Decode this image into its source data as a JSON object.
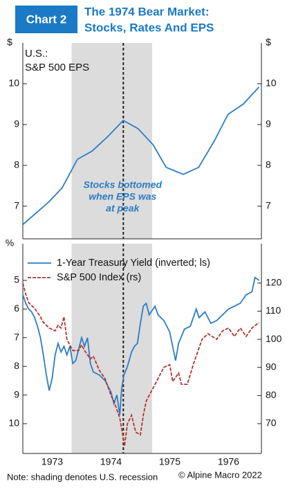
{
  "header": {
    "badge": "Chart 2",
    "title": [
      "The 1974 Bear Market:",
      "Stocks, Rates And EPS"
    ]
  },
  "note": "Note: shading denotes U.S. recession",
  "copyright": "© Alpine Macro 2022",
  "chart_data": [
    {
      "type": "line",
      "title": [
        "U.S.:",
        "S&P 500 EPS"
      ],
      "y_unit": "$",
      "y2_unit": "$",
      "xlim": [
        1973.0,
        1977.06
      ],
      "ylim": [
        6.2,
        11.0
      ],
      "yticks": [
        7,
        8,
        9,
        10
      ],
      "y2lim": [
        6.2,
        11.0
      ],
      "y2ticks": [
        7,
        8,
        9,
        10
      ],
      "recession": [
        1973.83,
        1975.2
      ],
      "stocks_bottom": 1974.71,
      "annotation": [
        "Stocks bottomed",
        "when EPS was",
        "at peak"
      ],
      "series": [
        {
          "color": "#2b7cc4",
          "x": [
            1973.0,
            1973.2,
            1973.44,
            1973.67,
            1973.93,
            1974.18,
            1974.44,
            1974.71,
            1974.96,
            1975.22,
            1975.44,
            1975.73,
            1975.99,
            1976.26,
            1976.49,
            1976.75,
            1977.02
          ],
          "values": [
            6.55,
            6.8,
            7.1,
            7.45,
            8.15,
            8.35,
            8.7,
            9.1,
            8.9,
            8.5,
            7.95,
            7.78,
            7.95,
            8.6,
            9.25,
            9.5,
            9.92
          ]
        }
      ]
    },
    {
      "type": "line",
      "y_unit": "%",
      "xlim": [
        1973.0,
        1977.06
      ],
      "ylim": [
        11.04,
        3.72
      ],
      "yticks": [
        5,
        6,
        7,
        8,
        9,
        10
      ],
      "y2lim": [
        59.4,
        134
      ],
      "y2ticks": [
        70,
        80,
        90,
        100,
        110,
        120
      ],
      "xticks": [
        {
          "value": 1973.5,
          "label": "1973"
        },
        {
          "value": 1974.5,
          "label": "1974"
        },
        {
          "value": 1975.5,
          "label": "1975"
        },
        {
          "value": 1976.5,
          "label": "1976"
        }
      ],
      "recession": [
        1973.83,
        1975.2
      ],
      "stocks_bottom": 1974.71,
      "series": [
        {
          "name": "1-Year Treasury Yield (inverted; ls)",
          "color": "#2b7cc4",
          "dash": false,
          "x": [
            1973.0,
            1973.05,
            1973.1,
            1973.15,
            1973.2,
            1973.25,
            1973.3,
            1973.35,
            1973.4,
            1973.45,
            1973.5,
            1973.55,
            1973.6,
            1973.65,
            1973.7,
            1973.75,
            1973.8,
            1973.85,
            1973.9,
            1974.0,
            1974.05,
            1974.1,
            1974.15,
            1974.2,
            1974.3,
            1974.4,
            1974.5,
            1974.55,
            1974.6,
            1974.65,
            1974.68,
            1974.72,
            1974.78,
            1974.85,
            1974.9,
            1974.95,
            1975.0,
            1975.05,
            1975.1,
            1975.15,
            1975.25,
            1975.3,
            1975.4,
            1975.5,
            1975.6,
            1975.65,
            1975.75,
            1975.85,
            1975.95,
            1976.0,
            1976.1,
            1976.2,
            1976.3,
            1976.4,
            1976.5,
            1976.6,
            1976.7,
            1976.8,
            1976.9,
            1976.95,
            1977.02
          ],
          "values": [
            5.5,
            5.8,
            6.0,
            6.1,
            6.3,
            6.6,
            7.0,
            7.6,
            8.3,
            8.85,
            8.4,
            7.6,
            7.2,
            7.5,
            7.3,
            7.6,
            7.3,
            7.9,
            7.8,
            7.0,
            7.3,
            7.0,
            7.9,
            8.2,
            8.3,
            8.5,
            8.9,
            9.3,
            9.0,
            9.7,
            8.8,
            8.3,
            8.0,
            7.5,
            7.3,
            7.2,
            6.5,
            5.9,
            5.8,
            6.2,
            5.9,
            6.2,
            6.4,
            6.8,
            7.8,
            7.2,
            6.7,
            6.6,
            6.0,
            6.3,
            6.1,
            6.5,
            6.4,
            6.2,
            6.0,
            5.9,
            5.8,
            5.5,
            5.4,
            4.9,
            5.0
          ]
        },
        {
          "name": "S&P 500 Index (rs)",
          "color": "#b8312f",
          "dash": true,
          "axis": "y2",
          "x": [
            1973.0,
            1973.05,
            1973.1,
            1973.2,
            1973.3,
            1973.35,
            1973.45,
            1973.55,
            1973.6,
            1973.65,
            1973.7,
            1973.75,
            1973.85,
            1973.95,
            1974.0,
            1974.05,
            1974.15,
            1974.2,
            1974.3,
            1974.4,
            1974.5,
            1974.55,
            1974.65,
            1974.7,
            1974.73,
            1974.78,
            1974.85,
            1974.92,
            1975.0,
            1975.05,
            1975.1,
            1975.2,
            1975.3,
            1975.4,
            1975.5,
            1975.55,
            1975.65,
            1975.7,
            1975.8,
            1975.9,
            1976.0,
            1976.05,
            1976.15,
            1976.3,
            1976.4,
            1976.5,
            1976.6,
            1976.7,
            1976.8,
            1976.9,
            1977.02
          ],
          "values": [
            120,
            116,
            113,
            111,
            108,
            106,
            104,
            103,
            105,
            104,
            108,
            100,
            96,
            96,
            98,
            96,
            93,
            94,
            89,
            86,
            80,
            78,
            72,
            66,
            62,
            70,
            73,
            67,
            66,
            73,
            78,
            82,
            86,
            90,
            91,
            85,
            88,
            84,
            84,
            91,
            97,
            100,
            102,
            100,
            103,
            104,
            101,
            104,
            101,
            104,
            106
          ]
        }
      ]
    }
  ]
}
